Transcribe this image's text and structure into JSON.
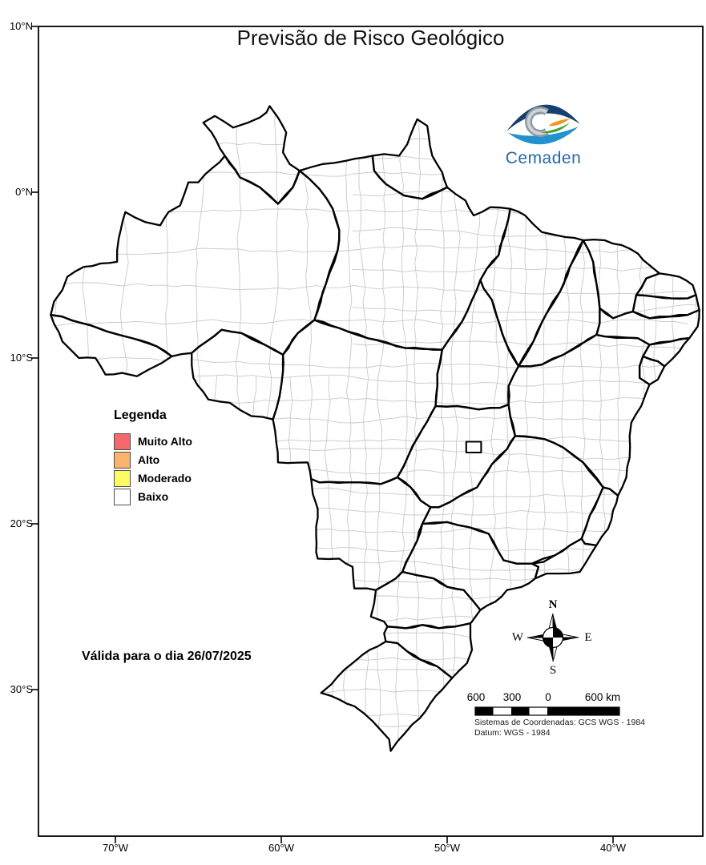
{
  "title": "Previsão de Risco Geológico",
  "logo": {
    "wordmark": "Cemaden",
    "icon": "cemaden-eye-logo",
    "colors": {
      "eyelid_top": "#16406F",
      "eyelid_bottom": "#2191CF",
      "ring_dark": "#8F99A1",
      "ring_light": "#CDD3D7",
      "wave_green": "#3FA02F",
      "wave_orange": "#F6921E",
      "wordmark_blue": "#2769A8"
    }
  },
  "legend": {
    "title": "Legenda",
    "items": [
      {
        "label": "Muito Alto",
        "color": "#F5696C"
      },
      {
        "label": "Alto",
        "color": "#F9B36A"
      },
      {
        "label": "Moderado",
        "color": "#FBFB64"
      },
      {
        "label": "Baixo",
        "color": "#FFFFFF"
      }
    ]
  },
  "validity_note": "Válida para o dia 26/07/2025",
  "axes": {
    "lat_ticks": [
      "10°N",
      "0°N",
      "10°S",
      "20°S",
      "30°S"
    ],
    "lon_ticks": [
      "70°W",
      "60°W",
      "50°W",
      "40°W"
    ]
  },
  "compass": {
    "icon": "compass-rose-icon",
    "n": "N",
    "e": "E",
    "s": "S",
    "w": "W"
  },
  "scale_bar": {
    "labels": [
      "600",
      "300",
      "0",
      "600 km"
    ]
  },
  "crs_note": {
    "line1": "Sistemas de Coordenadas: GCS WGS - 1984",
    "line2": "Datum: WGS - 1984"
  },
  "map": {
    "country": "Brazil",
    "state_border_color": "#000000",
    "municipality_border_color": "#c9c9c9",
    "fill": "#ffffff"
  }
}
